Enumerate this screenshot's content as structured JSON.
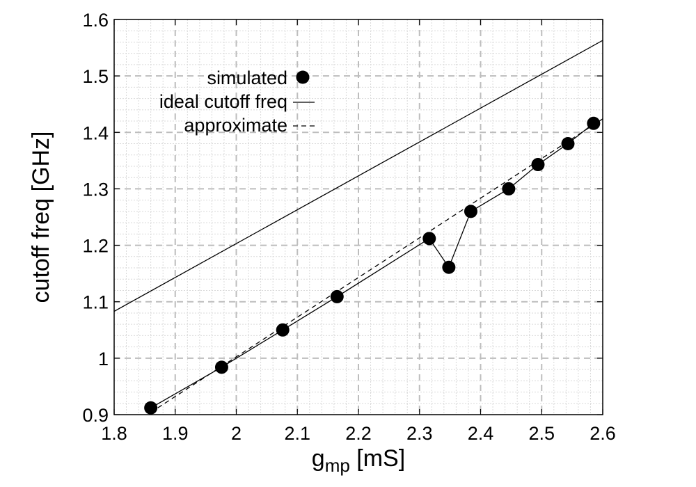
{
  "chart_data": {
    "type": "line",
    "title": "",
    "xlabel": {
      "main": "g",
      "sub": "mp",
      "unit": " [mS]"
    },
    "ylabel": "cutoff freq [GHz]",
    "xlim": [
      1.8,
      2.6
    ],
    "ylim": [
      0.9,
      1.6
    ],
    "x_major_ticks": [
      1.8,
      1.9,
      2.0,
      2.1,
      2.2,
      2.3,
      2.4,
      2.5,
      2.6
    ],
    "x_tick_labels": [
      "1.8",
      "1.9",
      "2",
      "2.1",
      "2.2",
      "2.3",
      "2.4",
      "2.5",
      "2.6"
    ],
    "y_major_ticks": [
      0.9,
      1.0,
      1.1,
      1.2,
      1.3,
      1.4,
      1.5,
      1.6
    ],
    "y_tick_labels": [
      "0.9",
      "1",
      "1.1",
      "1.2",
      "1.3",
      "1.4",
      "1.5",
      "1.6"
    ],
    "grid": true,
    "legend_position": "top-left",
    "series": [
      {
        "name": "simulated",
        "style": "markers-with-line",
        "x": [
          1.86,
          1.976,
          2.076,
          2.165,
          2.316,
          2.348,
          2.384,
          2.446,
          2.494,
          2.543,
          2.585
        ],
        "y": [
          0.912,
          0.984,
          1.05,
          1.109,
          1.212,
          1.161,
          1.26,
          1.3,
          1.343,
          1.38,
          1.416
        ]
      },
      {
        "name": "ideal cutoff freq",
        "style": "solid",
        "x": [
          1.8,
          2.6
        ],
        "y": [
          1.083,
          1.563
        ]
      },
      {
        "name": "approximate",
        "style": "dashed",
        "x": [
          1.86,
          2.6
        ],
        "y": [
          0.904,
          1.424
        ]
      }
    ]
  }
}
